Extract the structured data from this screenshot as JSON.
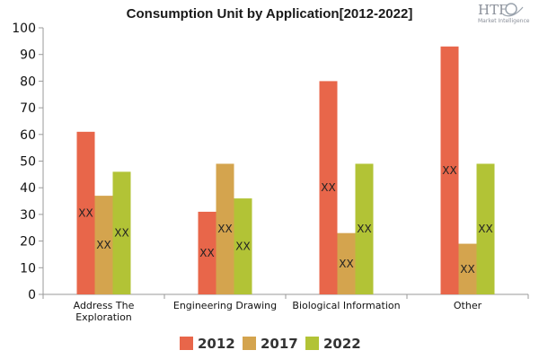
{
  "logo": {
    "brand": "HTF",
    "tagline": "Market Intelligence"
  },
  "chart_data": {
    "type": "bar",
    "title": "Consumption Unit by  Application[2012-2022]",
    "xlabel": "",
    "ylabel": "",
    "categories": [
      [
        "Address The",
        "Exploration"
      ],
      [
        "Engineering Drawing"
      ],
      [
        "Biological Information"
      ],
      [
        "Other"
      ]
    ],
    "series": [
      {
        "name": "2012",
        "color": "#e8664a",
        "values": [
          61,
          31,
          80,
          93
        ]
      },
      {
        "name": "2017",
        "color": "#d4a44e",
        "values": [
          37,
          49,
          23,
          19
        ]
      },
      {
        "name": "2022",
        "color": "#b2c336",
        "values": [
          46,
          36,
          49,
          49
        ]
      }
    ],
    "data_label": "XX",
    "ylim": [
      0,
      100
    ],
    "yticks": [
      0,
      10,
      20,
      30,
      40,
      50,
      60,
      70,
      80,
      90,
      100
    ],
    "grid": false,
    "legend_position": "bottom"
  }
}
